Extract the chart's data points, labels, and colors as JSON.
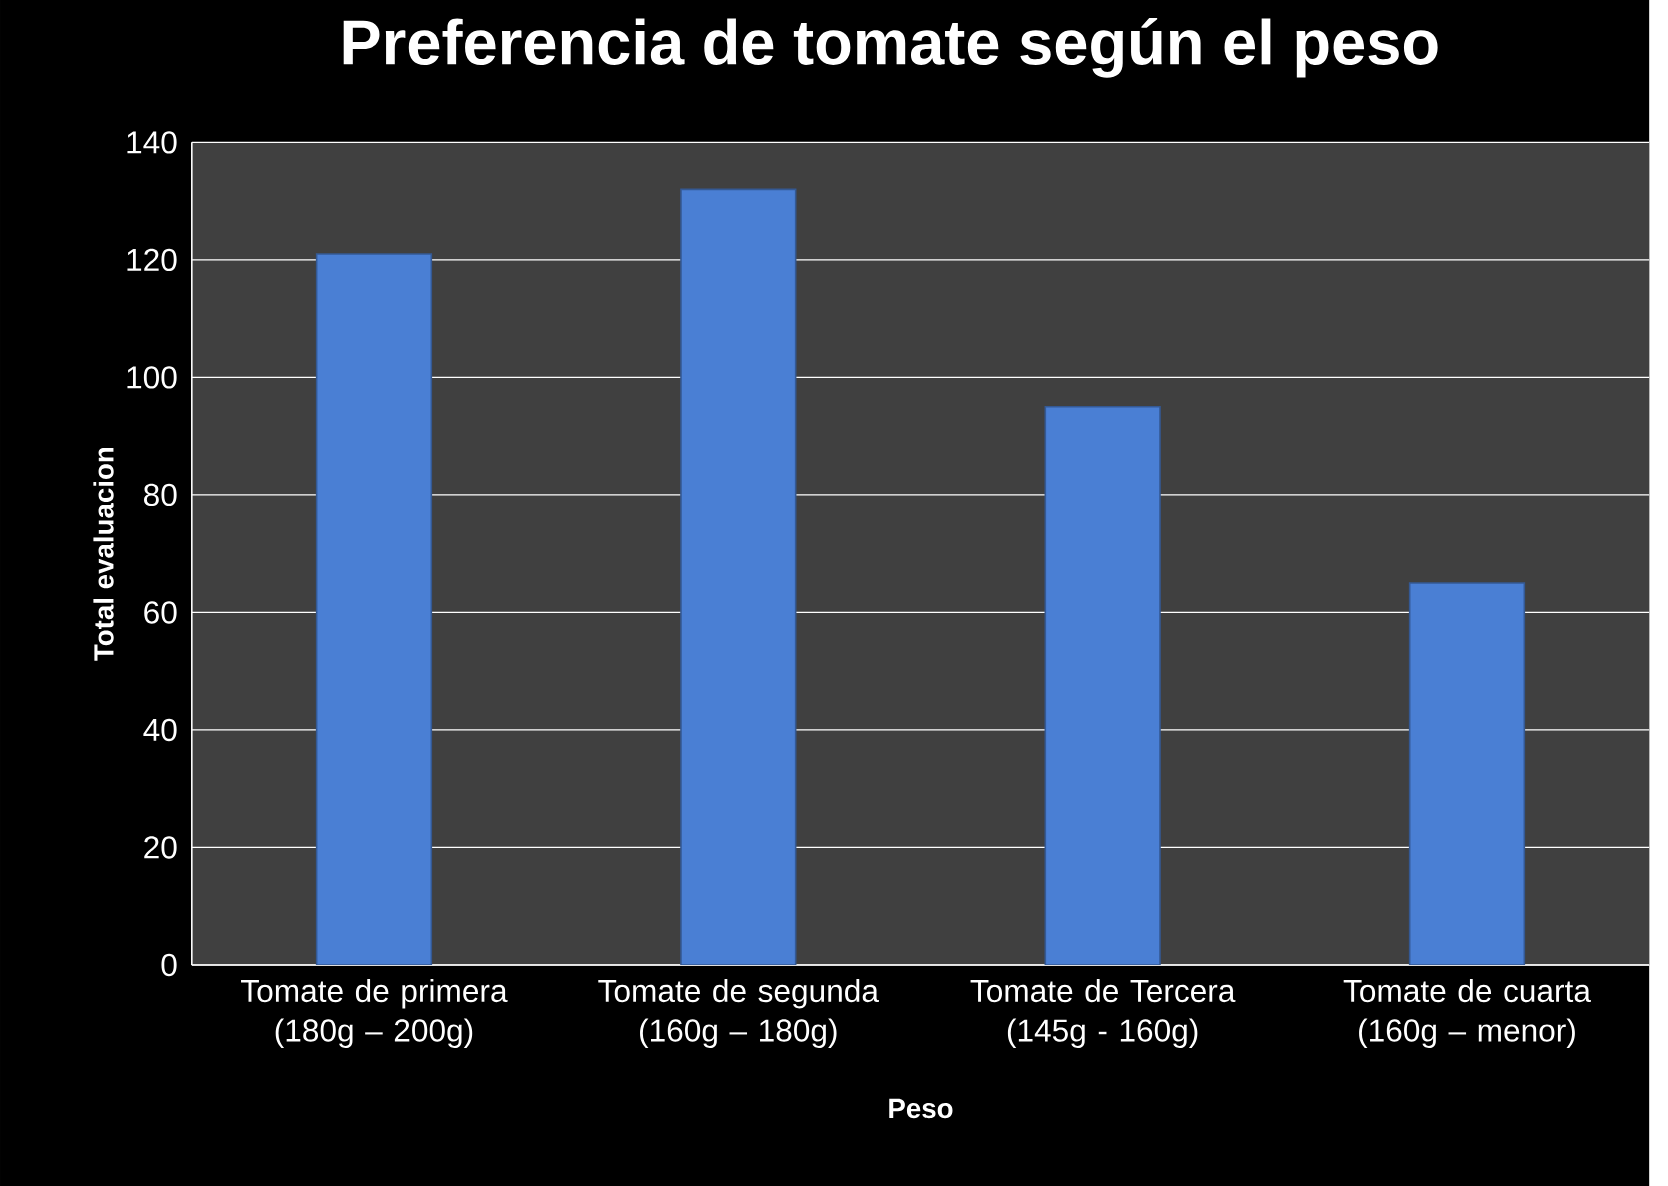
{
  "chart_data": {
    "type": "bar",
    "title": "Preferencia de tomate según el peso",
    "xlabel": "Peso",
    "ylabel": "Total evaluacion",
    "categories": [
      "Tomate de primera (180g – 200g)",
      "Tomate de segunda (160g – 180g)",
      "Tomate de Tercera (145g - 160g)",
      "Tomate de cuarta (160g – menor)"
    ],
    "values": [
      121,
      132,
      95,
      65
    ],
    "color": "#4a7fd4",
    "ylim": [
      0,
      140
    ],
    "yticks": [
      0,
      20,
      40,
      60,
      80,
      100,
      120,
      140
    ],
    "grid": "y"
  }
}
